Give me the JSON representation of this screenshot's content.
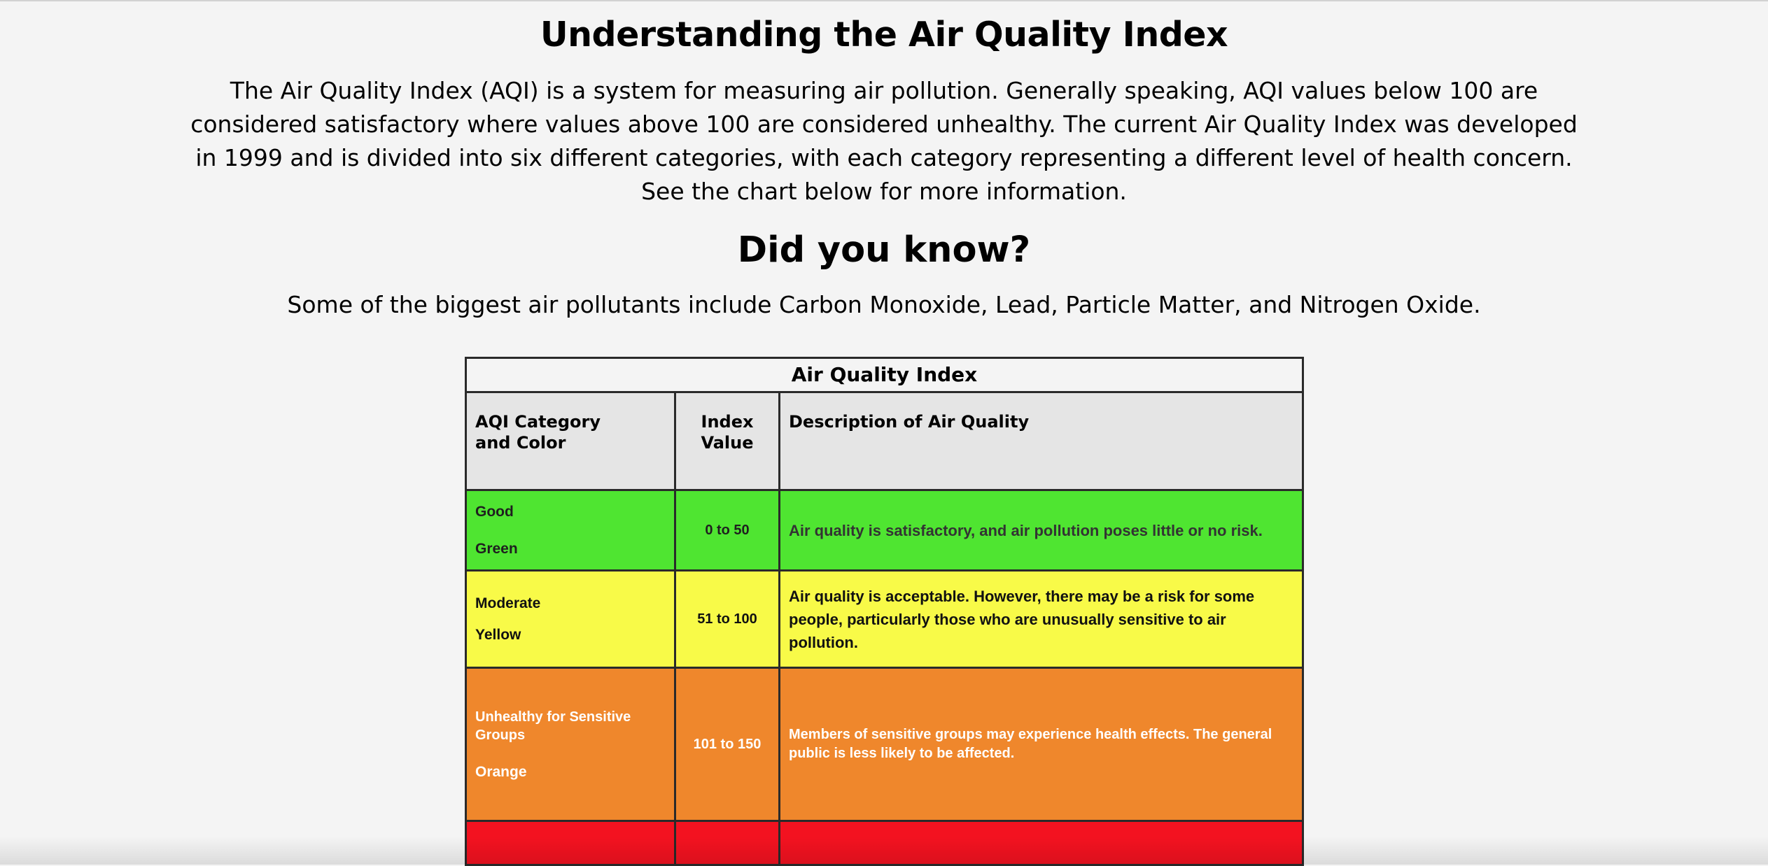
{
  "page": {
    "title": "Understanding the Air Quality Index",
    "intro": "The Air Quality Index (AQI) is a system for measuring air pollution. Generally speaking, AQI values below 100 are considered satisfactory where values above 100 are considered unhealthy. The current Air Quality Index was developed in 1999 and is divided into six different categories, with each category representing a different level of health concern. See the chart below for more information.",
    "subheading": "Did you know?",
    "fact": "Some of the biggest air pollutants include Carbon Monoxide, Lead, Particle Matter, and Nitrogen Oxide."
  },
  "table": {
    "caption": "Air Quality Index",
    "headers": {
      "category_line1": "AQI Category",
      "category_line2": "and Color",
      "index_line1": "Index",
      "index_line2": "Value",
      "description": "Description of Air Quality"
    },
    "rows": [
      {
        "category": "Good",
        "color_name": "Green",
        "range": "0 to 50",
        "description": "Air quality is satisfactory, and air pollution poses little or no risk.",
        "color": "#4fe531"
      },
      {
        "category": "Moderate",
        "color_name": "Yellow",
        "range": "51 to 100",
        "description": "Air quality is acceptable. However, there may be a risk for some people, particularly those who are unusually sensitive to air pollution.",
        "color": "#f8fa48"
      },
      {
        "category": "Unhealthy for Sensitive Groups",
        "color_name": "Orange",
        "range": "101 to 150",
        "description": "Members of sensitive groups may experience health effects. The general public is less likely to be affected.",
        "color": "#ef872c"
      },
      {
        "category": "",
        "color_name": "",
        "range": "",
        "description": "",
        "color": "#f31220"
      }
    ]
  }
}
